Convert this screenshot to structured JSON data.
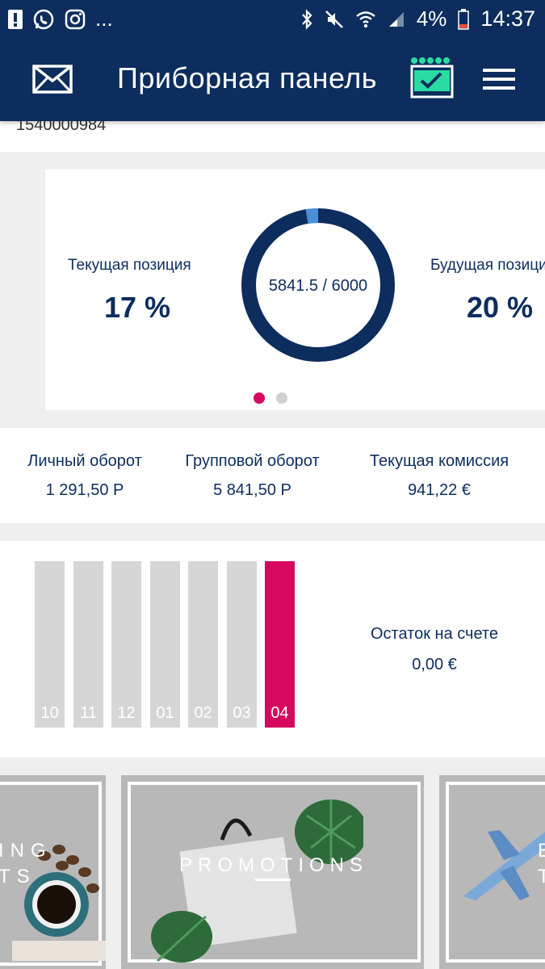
{
  "status_bar": {
    "battery_percent": "4%",
    "time": "14:37",
    "ellipsis": "..."
  },
  "app_bar": {
    "title": "Приборная панель"
  },
  "top_card": {
    "number": "1540000984"
  },
  "position_card": {
    "current_label": "Текущая позиция",
    "current_value": "17 %",
    "future_label": "Будущая позиция",
    "future_value": "20 %",
    "donut_text": "5841.5 / 6000",
    "progress": {
      "value": 5841.5,
      "max": 6000
    },
    "pages": {
      "count": 2,
      "active": 0
    }
  },
  "stats": [
    {
      "label": "Личный оборот",
      "value": "1 291,50 Р"
    },
    {
      "label": "Групповой оборот",
      "value": "5 841,50 Р"
    },
    {
      "label": "Текущая комиссия",
      "value": "941,22 €"
    }
  ],
  "months": [
    {
      "label": "10",
      "active": false
    },
    {
      "label": "11",
      "active": false
    },
    {
      "label": "12",
      "active": false
    },
    {
      "label": "01",
      "active": false
    },
    {
      "label": "02",
      "active": false
    },
    {
      "label": "03",
      "active": false
    },
    {
      "label": "04",
      "active": true
    }
  ],
  "balance": {
    "label": "Остаток на счете",
    "value": "0,00 €"
  },
  "promos": [
    {
      "text": "ING\nTS"
    },
    {
      "text": "PROMOTIONS"
    },
    {
      "text": "E\nT"
    }
  ],
  "colors": {
    "primary": "#0c2d5d",
    "accent": "#d6085f",
    "calendar_dots": "#2bdba4",
    "progress_tip": "#4a90d9"
  }
}
